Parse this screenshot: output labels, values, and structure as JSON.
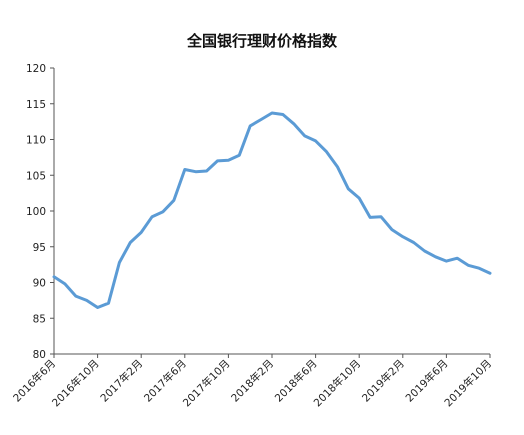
{
  "chart_data": {
    "type": "line",
    "title": "全国银行理财价格指数",
    "xlabel": "",
    "ylabel": "",
    "ylim": [
      80,
      120
    ],
    "y_ticks": [
      80,
      85,
      90,
      95,
      100,
      105,
      110,
      115,
      120
    ],
    "grid": false,
    "legend": "none",
    "color": "#5b9bd5",
    "x_tick_labels": [
      "2016年6月",
      "2016年10月",
      "2017年2月",
      "2017年6月",
      "2017年10月",
      "2018年2月",
      "2018年6月",
      "2018年10月",
      "2019年2月",
      "2019年6月",
      "2019年10月"
    ],
    "x_tick_indices": [
      0,
      4,
      8,
      12,
      16,
      20,
      24,
      28,
      32,
      36,
      40
    ],
    "x": [
      "2016-06",
      "2016-07",
      "2016-08",
      "2016-09",
      "2016-10",
      "2016-11",
      "2016-12",
      "2017-01",
      "2017-02",
      "2017-03",
      "2017-04",
      "2017-05",
      "2017-06",
      "2017-07",
      "2017-08",
      "2017-09",
      "2017-10",
      "2017-11",
      "2017-12",
      "2018-01",
      "2018-02",
      "2018-03",
      "2018-04",
      "2018-05",
      "2018-06",
      "2018-07",
      "2018-08",
      "2018-09",
      "2018-10",
      "2018-11",
      "2018-12",
      "2019-01",
      "2019-02",
      "2019-03",
      "2019-04",
      "2019-05",
      "2019-06",
      "2019-07",
      "2019-08",
      "2019-09",
      "2019-10"
    ],
    "values": [
      90.8,
      89.8,
      88.1,
      87.5,
      86.5,
      87.1,
      92.8,
      95.6,
      97.0,
      99.2,
      99.9,
      101.5,
      105.8,
      105.5,
      105.6,
      107.0,
      107.1,
      107.8,
      111.9,
      112.8,
      113.7,
      113.5,
      112.2,
      110.5,
      109.8,
      108.3,
      106.2,
      103.1,
      101.8,
      99.1,
      99.2,
      97.4,
      96.4,
      95.6,
      94.4,
      93.6,
      93.0,
      93.4,
      92.4,
      92.0,
      91.3
    ]
  }
}
